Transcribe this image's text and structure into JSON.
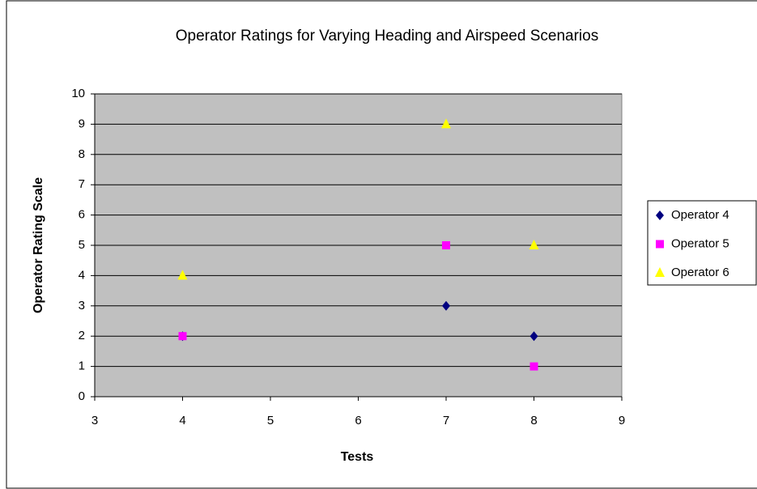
{
  "chart_data": {
    "type": "scatter",
    "title": "Operator Ratings for Varying Heading and Airspeed Scenarios",
    "xlabel": "Tests",
    "ylabel": "Operator Rating Scale",
    "x": [
      4,
      7,
      8
    ],
    "series": [
      {
        "name": "Operator 4",
        "color": "#000080",
        "marker": "diamond",
        "values": [
          2,
          3,
          2
        ]
      },
      {
        "name": "Operator 5",
        "color": "#ff00ff",
        "marker": "square",
        "values": [
          2,
          5,
          1
        ]
      },
      {
        "name": "Operator 6",
        "color": "#ffff00",
        "marker": "triangle",
        "values": [
          4,
          9,
          5
        ]
      }
    ],
    "xlim": [
      3,
      9
    ],
    "xticks": [
      3,
      4,
      5,
      6,
      7,
      8,
      9
    ],
    "ylim": [
      0,
      10
    ],
    "yticks": [
      0,
      1,
      2,
      3,
      4,
      5,
      6,
      7,
      8,
      9,
      10
    ],
    "grid": true,
    "legend": "right"
  }
}
